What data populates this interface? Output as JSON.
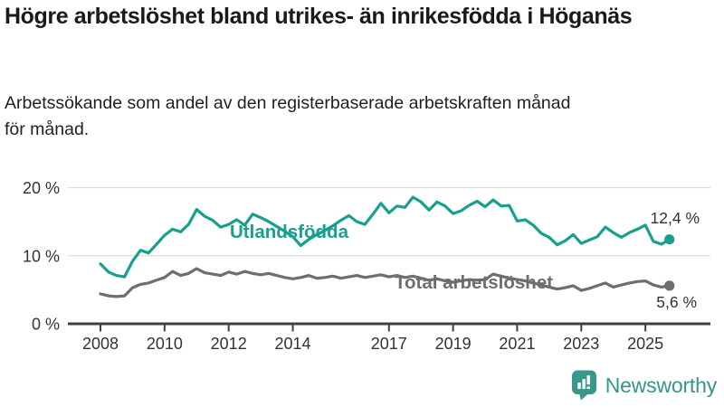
{
  "header": {
    "title": "Högre arbetslöshet bland utrikes- än inrikesfödda i Höganäs",
    "subtitle": "Arbetssökande som andel av den registerbaserade arbetskraften månad för månad."
  },
  "chart_data": {
    "type": "line",
    "title": "Högre arbetslöshet bland utrikes- än inrikesfödda i Höganäs",
    "subtitle": "Arbetssökande som andel av den registerbaserade arbetskraften månad för månad.",
    "unit": "%",
    "x_start": 2008,
    "x_step_years": 0.25,
    "xlim": [
      2007.7,
      2026.2
    ],
    "ylim": [
      0,
      21
    ],
    "grid": true,
    "yticks": [
      {
        "value": 0,
        "label": "0 %"
      },
      {
        "value": 10,
        "label": "10 %"
      },
      {
        "value": 20,
        "label": "20 %"
      }
    ],
    "xticks": [
      {
        "value": 2008,
        "label": "2008"
      },
      {
        "value": 2010,
        "label": "2010"
      },
      {
        "value": 2012,
        "label": "2012"
      },
      {
        "value": 2014,
        "label": "2014"
      },
      {
        "value": 2017,
        "label": "2017"
      },
      {
        "value": 2019,
        "label": "2019"
      },
      {
        "value": 2021,
        "label": "2021"
      },
      {
        "value": 2023,
        "label": "2023"
      },
      {
        "value": 2025,
        "label": "2025"
      }
    ],
    "series": [
      {
        "name": "Utlandsfödda",
        "color": "#17a08e",
        "end_label": "12,4 %",
        "end_value": 12.4,
        "values": [
          8.8,
          7.6,
          7.1,
          6.9,
          9.2,
          10.8,
          10.4,
          11.7,
          13.0,
          13.9,
          13.5,
          14.6,
          16.8,
          15.8,
          15.2,
          14.2,
          14.6,
          15.3,
          14.5,
          16.1,
          15.6,
          15.0,
          14.3,
          13.6,
          12.8,
          11.5,
          12.4,
          13.1,
          13.7,
          14.4,
          15.2,
          15.9,
          15.0,
          14.6,
          16.1,
          17.7,
          16.3,
          17.3,
          17.1,
          18.6,
          17.9,
          16.7,
          17.9,
          17.3,
          16.2,
          16.6,
          17.4,
          18.0,
          17.2,
          18.2,
          17.3,
          17.4,
          15.1,
          15.3,
          14.5,
          13.3,
          12.7,
          11.6,
          12.2,
          13.1,
          11.8,
          12.3,
          12.8,
          14.2,
          13.4,
          12.7,
          13.4,
          13.9,
          14.5,
          12.1,
          11.7,
          12.4
        ]
      },
      {
        "name": "Total arbetslöshet",
        "color": "#6e6e6e",
        "end_label": "5,6 %",
        "end_value": 5.6,
        "values": [
          4.4,
          4.1,
          4.0,
          4.1,
          5.3,
          5.8,
          6.0,
          6.4,
          6.8,
          7.7,
          7.1,
          7.4,
          8.1,
          7.5,
          7.3,
          7.1,
          7.6,
          7.3,
          7.7,
          7.4,
          7.2,
          7.4,
          7.1,
          6.8,
          6.6,
          6.8,
          7.1,
          6.7,
          6.8,
          7.0,
          6.7,
          6.9,
          7.1,
          6.8,
          7.0,
          7.2,
          6.9,
          7.1,
          6.8,
          7.0,
          6.7,
          6.4,
          6.6,
          6.3,
          6.1,
          6.3,
          6.5,
          6.4,
          6.5,
          7.3,
          7.0,
          6.7,
          6.5,
          6.3,
          6.0,
          5.7,
          5.4,
          5.1,
          5.3,
          5.6,
          4.9,
          5.2,
          5.6,
          6.0,
          5.4,
          5.7,
          6.0,
          6.2,
          6.3,
          5.7,
          5.4,
          5.6
        ]
      }
    ],
    "colors": {
      "axis": "#3f3f3f",
      "gridline": "#dcdcdc",
      "tick_text": "#333333"
    }
  },
  "branding": {
    "logo_text": "Newsworthy",
    "logo_icon": "bar-chart-speech-bubble-icon",
    "color": "#35968a"
  }
}
